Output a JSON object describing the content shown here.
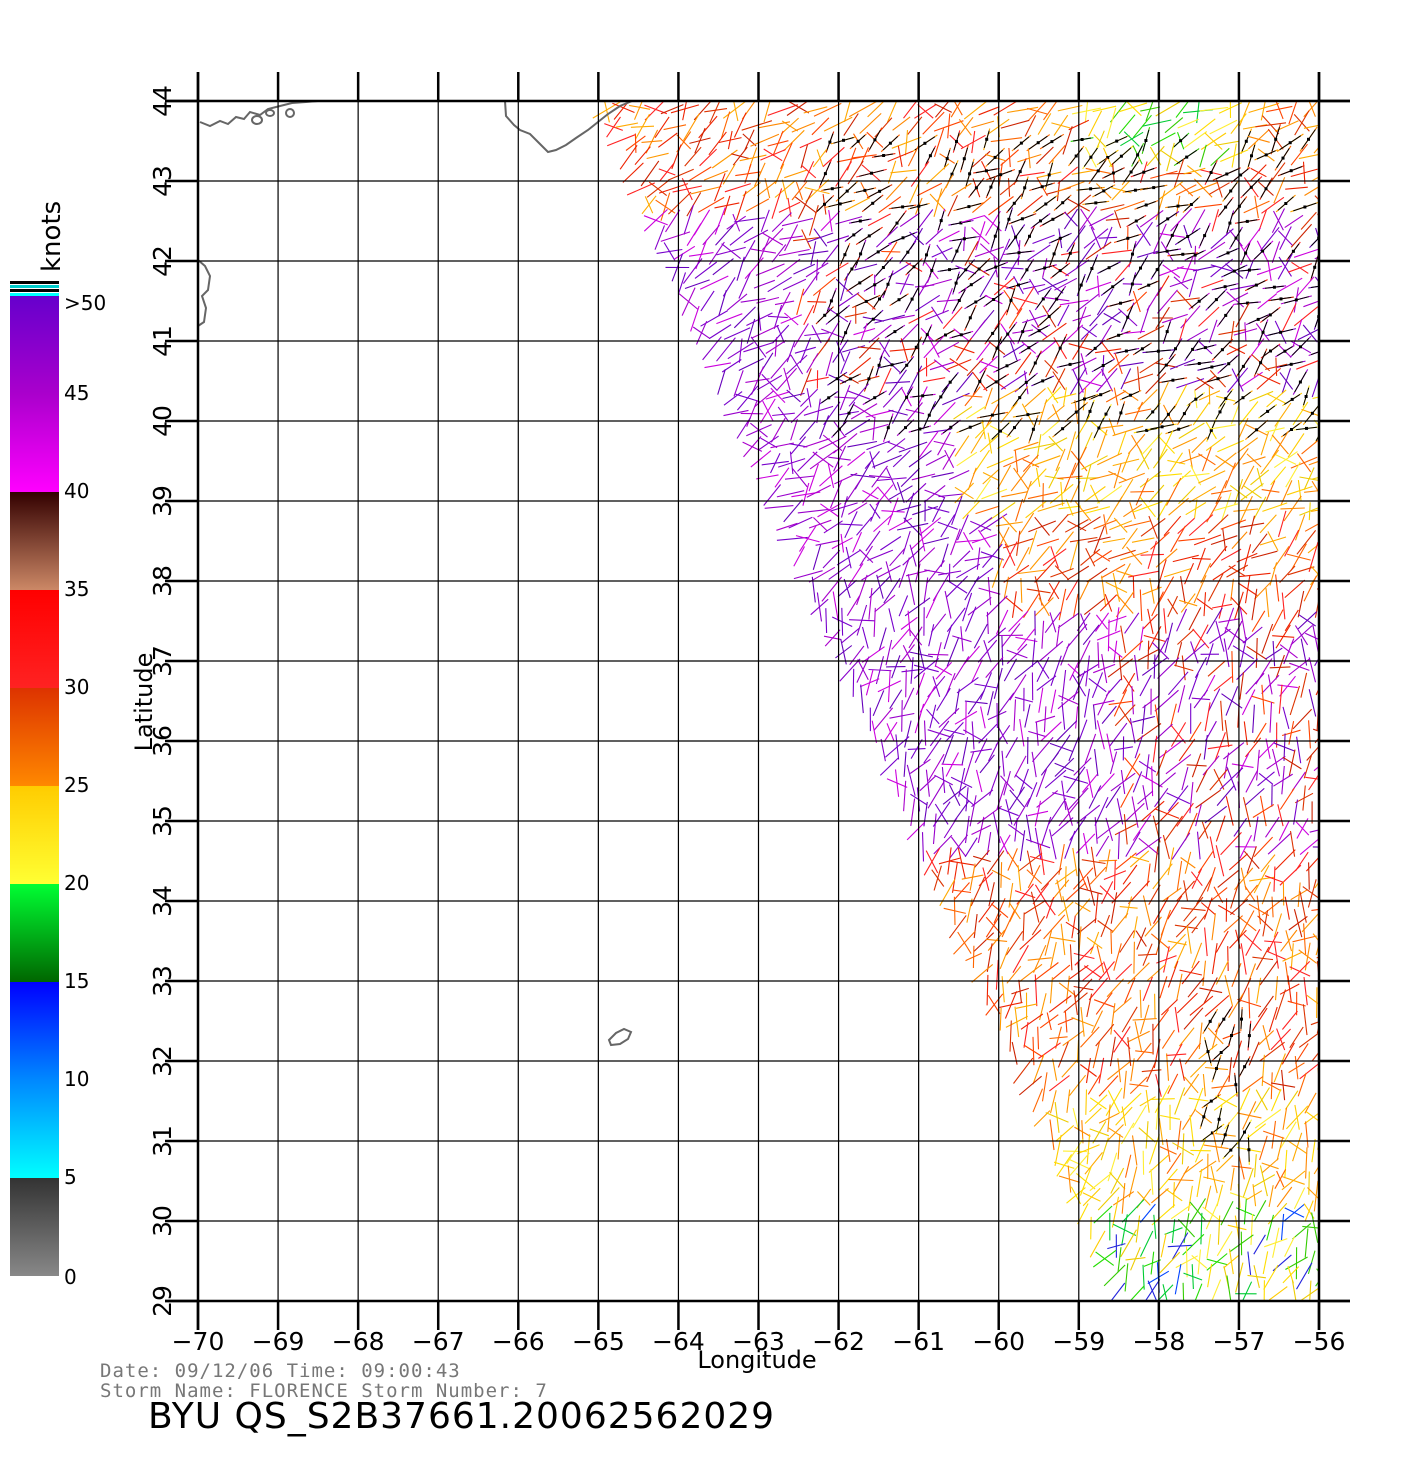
{
  "legend": {
    "unit": "knots",
    "tick_labels": [
      ">50",
      "45",
      "40",
      "35",
      "30",
      "25",
      "20",
      "15",
      "10",
      "5",
      "0"
    ],
    "stops": [
      {
        "value": 0,
        "color": "#888888"
      },
      {
        "value": 5,
        "color": "#333333"
      },
      {
        "value": 5,
        "color": "#00ffff"
      },
      {
        "value": 10,
        "color": "#0088ff"
      },
      {
        "value": 15,
        "color": "#0000ff"
      },
      {
        "value": 15,
        "color": "#006600"
      },
      {
        "value": 20,
        "color": "#00ff33"
      },
      {
        "value": 20,
        "color": "#ffff33"
      },
      {
        "value": 25,
        "color": "#ffcc00"
      },
      {
        "value": 25,
        "color": "#ff8800"
      },
      {
        "value": 30,
        "color": "#dd3300"
      },
      {
        "value": 30,
        "color": "#ff2222"
      },
      {
        "value": 35,
        "color": "#ff0000"
      },
      {
        "value": 35,
        "color": "#cc8866"
      },
      {
        "value": 40,
        "color": "#330000"
      },
      {
        "value": 40,
        "color": "#ff00ff"
      },
      {
        "value": 45,
        "color": "#aa00cc"
      },
      {
        "value": 50,
        "color": "#6600cc"
      }
    ],
    "cap_colors": [
      "#000000",
      "#00cccc",
      "#000000",
      "#00ffff"
    ]
  },
  "map": {
    "xlabel": "Longitude",
    "ylabel": "Latitude",
    "lon_range": [
      -70,
      -56
    ],
    "lat_range": [
      29,
      44
    ],
    "lon_ticks": [
      -70,
      -69,
      -68,
      -67,
      -66,
      -65,
      -64,
      -63,
      -62,
      -61,
      -60,
      -59,
      -58,
      -57,
      -56
    ],
    "lat_ticks": [
      29,
      30,
      31,
      32,
      33,
      34,
      35,
      36,
      37,
      38,
      39,
      40,
      41,
      42,
      43,
      44
    ],
    "coastline_color": "#666666",
    "grid_color": "#000000",
    "swath": {
      "lat_top": 44,
      "lat_bottom": 29,
      "west_lon_top": -65,
      "west_lon_bottom": -58.5,
      "east_lon": -56
    }
  },
  "footer": {
    "line1": "Date: 09/12/06   Time: 09:00:43",
    "line2": "Storm  Name: FLORENCE   Storm  Number: 7",
    "id": "BYU  QS_S2B37661.20062562029"
  }
}
